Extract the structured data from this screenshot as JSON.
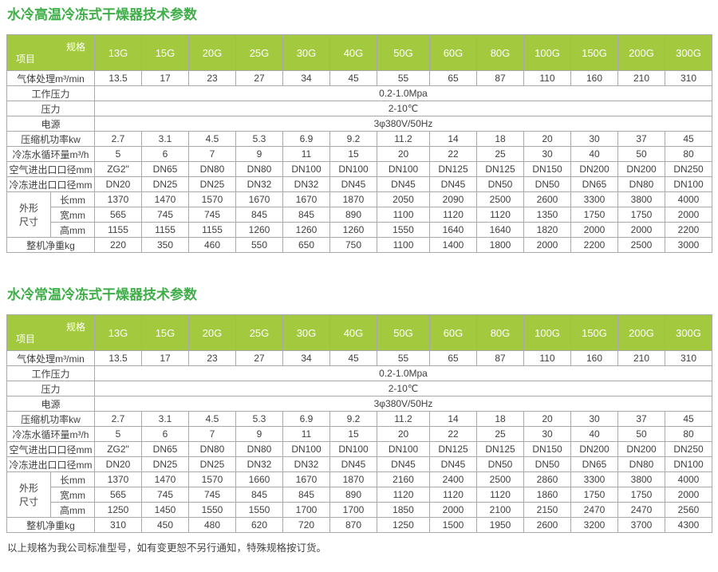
{
  "page": {
    "footer_note": "以上规格为我公司标准型号，如有变更恕不另行通知，特殊规格按订货。"
  },
  "colors": {
    "header_green": "#a3c93f",
    "title_green": "#3fae49",
    "border_gray": "#a9a9a9"
  },
  "corner": {
    "spec": "规格",
    "item": "项目"
  },
  "tables": [
    {
      "title": "水冷高温冷冻式干燥器技术参数",
      "columns": [
        "13G",
        "15G",
        "20G",
        "25G",
        "30G",
        "40G",
        "50G",
        "60G",
        "80G",
        "100G",
        "150G",
        "200G",
        "300G"
      ],
      "rows": [
        {
          "label": "气体处理m³/min",
          "values": [
            "13.5",
            "17",
            "23",
            "27",
            "34",
            "45",
            "55",
            "65",
            "87",
            "110",
            "160",
            "210",
            "310"
          ]
        },
        {
          "label": "工作压力",
          "merged": "0.2-1.0Mpa"
        },
        {
          "label": "压力",
          "merged": "2-10℃"
        },
        {
          "label": "电源",
          "merged": "3φ380V/50Hz"
        },
        {
          "label": "压缩机功率kw",
          "values": [
            "2.7",
            "3.1",
            "4.5",
            "5.3",
            "6.9",
            "9.2",
            "11.2",
            "14",
            "18",
            "20",
            "30",
            "37",
            "45"
          ]
        },
        {
          "label": "冷冻水循环量m³/h",
          "values": [
            "5",
            "6",
            "7",
            "9",
            "11",
            "15",
            "20",
            "22",
            "25",
            "30",
            "40",
            "50",
            "80"
          ]
        },
        {
          "label": "空气进出口口径mm",
          "values": [
            "ZG2\"",
            "DN65",
            "DN80",
            "DN80",
            "DN100",
            "DN100",
            "DN100",
            "DN125",
            "DN125",
            "DN150",
            "DN200",
            "DN200",
            "DN250"
          ]
        },
        {
          "label": "冷冻进出口口径mm",
          "values": [
            "DN20",
            "DN25",
            "DN25",
            "DN32",
            "DN32",
            "DN45",
            "DN45",
            "DN45",
            "DN50",
            "DN50",
            "DN65",
            "DN80",
            "DN100"
          ]
        },
        {
          "group": "外形\n尺寸",
          "group_span": 3,
          "label": "长mm",
          "values": [
            "1370",
            "1470",
            "1570",
            "1670",
            "1670",
            "1870",
            "2050",
            "2090",
            "2500",
            "2600",
            "3300",
            "3800",
            "4000"
          ]
        },
        {
          "in_group": true,
          "label": "宽mm",
          "values": [
            "565",
            "745",
            "745",
            "845",
            "845",
            "890",
            "1100",
            "1120",
            "1120",
            "1350",
            "1750",
            "1750",
            "2000"
          ]
        },
        {
          "in_group": true,
          "label": "高mm",
          "values": [
            "1155",
            "1155",
            "1155",
            "1260",
            "1260",
            "1260",
            "1550",
            "1640",
            "1640",
            "1820",
            "2000",
            "2000",
            "2200"
          ]
        },
        {
          "label": "整机净重kg",
          "values": [
            "220",
            "350",
            "460",
            "550",
            "650",
            "750",
            "1100",
            "1400",
            "1800",
            "2000",
            "2200",
            "2500",
            "3000"
          ]
        }
      ]
    },
    {
      "title": "水冷常温冷冻式干燥器技术参数",
      "columns": [
        "13G",
        "15G",
        "20G",
        "25G",
        "30G",
        "40G",
        "50G",
        "60G",
        "80G",
        "100G",
        "150G",
        "200G",
        "300G"
      ],
      "rows": [
        {
          "label": "气体处理m³/min",
          "values": [
            "13.5",
            "17",
            "23",
            "27",
            "34",
            "45",
            "55",
            "65",
            "87",
            "110",
            "160",
            "210",
            "310"
          ]
        },
        {
          "label": "工作压力",
          "merged": "0.2-1.0Mpa"
        },
        {
          "label": "压力",
          "merged": "2-10℃"
        },
        {
          "label": "电源",
          "merged": "3φ380V/50Hz"
        },
        {
          "label": "压缩机功率kw",
          "values": [
            "2.7",
            "3.1",
            "4.5",
            "5.3",
            "6.9",
            "9.2",
            "11.2",
            "14",
            "18",
            "20",
            "30",
            "37",
            "45"
          ]
        },
        {
          "label": "冷冻水循环量m³/h",
          "values": [
            "5",
            "6",
            "7",
            "9",
            "11",
            "15",
            "20",
            "22",
            "25",
            "30",
            "40",
            "50",
            "80"
          ]
        },
        {
          "label": "空气进出口口径mm",
          "values": [
            "ZG2\"",
            "DN65",
            "DN80",
            "DN80",
            "DN100",
            "DN100",
            "DN100",
            "DN125",
            "DN125",
            "DN150",
            "DN200",
            "DN200",
            "DN250"
          ]
        },
        {
          "label": "冷冻进出口口径mm",
          "values": [
            "DN20",
            "DN25",
            "DN25",
            "DN32",
            "DN32",
            "DN45",
            "DN45",
            "DN45",
            "DN50",
            "DN50",
            "DN65",
            "DN80",
            "DN100"
          ]
        },
        {
          "group": "外形\n尺寸",
          "group_span": 3,
          "label": "长mm",
          "values": [
            "1370",
            "1470",
            "1570",
            "1660",
            "1670",
            "1870",
            "2160",
            "2400",
            "2500",
            "2860",
            "3300",
            "3800",
            "4000"
          ]
        },
        {
          "in_group": true,
          "label": "宽mm",
          "values": [
            "565",
            "745",
            "745",
            "845",
            "845",
            "890",
            "1120",
            "1120",
            "1120",
            "1860",
            "1750",
            "1750",
            "2000"
          ]
        },
        {
          "in_group": true,
          "label": "高mm",
          "values": [
            "1250",
            "1450",
            "1550",
            "1550",
            "1700",
            "1700",
            "1850",
            "2000",
            "2100",
            "2150",
            "2470",
            "2470",
            "2560"
          ]
        },
        {
          "label": "整机净重kg",
          "values": [
            "310",
            "450",
            "480",
            "620",
            "720",
            "870",
            "1250",
            "1500",
            "1950",
            "2600",
            "3200",
            "3700",
            "4300"
          ]
        }
      ]
    }
  ]
}
